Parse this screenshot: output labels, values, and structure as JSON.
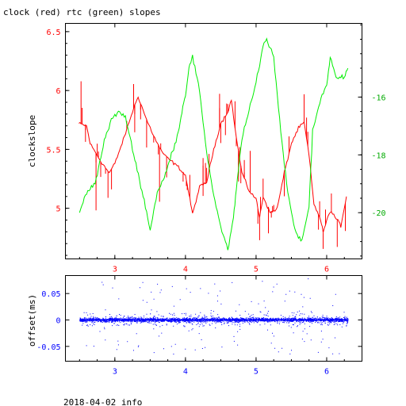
{
  "title": "clock (red) rtc (green) slopes",
  "footer": "2018-04-02 info",
  "colors": {
    "clock": "#ff0000",
    "rtc": "#00ee00",
    "offset": "#0000ff",
    "frame": "#000000"
  },
  "chart_data": [
    {
      "type": "line",
      "title": "clock (red) rtc (green) slopes",
      "xlabel": "",
      "ylabel": "clockslope",
      "xlim": [
        2.3,
        6.5
      ],
      "ylim": [
        4.57,
        6.57
      ],
      "ylim_right": [
        -21.6,
        -13.45
      ],
      "xticks": [
        "3",
        "4",
        "5",
        "6"
      ],
      "yticks_left": [
        "5",
        "5.5",
        "6",
        "6.5"
      ],
      "yticks_right": [
        "-20",
        "-18",
        "-16"
      ],
      "grid": false,
      "series": [
        {
          "name": "clock",
          "color": "#ff0000",
          "axis": "left",
          "x": [
            2.49,
            2.6,
            2.65,
            2.8,
            2.92,
            3.0,
            3.12,
            3.25,
            3.33,
            3.45,
            3.6,
            3.7,
            3.8,
            3.9,
            4.0,
            4.05,
            4.1,
            4.2,
            4.3,
            4.4,
            4.5,
            4.6,
            4.65,
            4.72,
            4.8,
            4.9,
            5.0,
            5.05,
            5.1,
            5.15,
            5.2,
            5.3,
            5.4,
            5.5,
            5.6,
            5.68,
            5.75,
            5.82,
            5.9,
            5.95,
            6.05,
            6.15,
            6.2,
            6.28
          ],
          "y": [
            5.72,
            5.7,
            5.55,
            5.4,
            5.3,
            5.38,
            5.58,
            5.82,
            5.95,
            5.75,
            5.55,
            5.45,
            5.4,
            5.35,
            5.28,
            5.12,
            4.95,
            5.18,
            5.22,
            5.5,
            5.72,
            5.82,
            5.92,
            5.6,
            5.3,
            5.15,
            5.08,
            4.92,
            5.1,
            5.03,
            4.96,
            5.0,
            5.3,
            5.55,
            5.68,
            5.73,
            5.45,
            5.03,
            4.93,
            4.8,
            4.98,
            4.9,
            4.85,
            5.1
          ]
        },
        {
          "name": "rtc",
          "color": "#00ee00",
          "axis": "right",
          "x": [
            2.5,
            2.6,
            2.72,
            2.85,
            2.95,
            3.05,
            3.15,
            3.25,
            3.4,
            3.5,
            3.6,
            3.7,
            3.8,
            3.9,
            3.95,
            4.0,
            4.05,
            4.1,
            4.2,
            4.3,
            4.4,
            4.5,
            4.6,
            4.68,
            4.72,
            4.8,
            4.9,
            5.0,
            5.1,
            5.15,
            5.25,
            5.35,
            5.45,
            5.55,
            5.65,
            5.75,
            5.8,
            5.92,
            6.0,
            6.05,
            6.15,
            6.25,
            6.3
          ],
          "y": [
            -20.0,
            -19.3,
            -19.0,
            -17.5,
            -16.8,
            -16.5,
            -16.7,
            -17.8,
            -19.4,
            -20.6,
            -19.3,
            -18.8,
            -18.0,
            -17.2,
            -16.5,
            -15.9,
            -15.0,
            -14.6,
            -15.8,
            -17.9,
            -19.4,
            -20.5,
            -21.3,
            -20.2,
            -19.2,
            -17.4,
            -16.5,
            -15.5,
            -14.2,
            -14.0,
            -14.6,
            -17.2,
            -19.3,
            -20.6,
            -21.0,
            -19.8,
            -17.2,
            -16.0,
            -15.6,
            -14.6,
            -15.4,
            -15.3,
            -15.0
          ]
        }
      ]
    },
    {
      "type": "scatter",
      "xlabel": "",
      "ylabel": "offset(ms)",
      "xlim": [
        2.3,
        6.5
      ],
      "ylim": [
        -0.078,
        0.084
      ],
      "xticks": [
        "3",
        "4",
        "5",
        "6"
      ],
      "yticks": [
        "-0.05",
        "0",
        "0.05"
      ],
      "grid": false,
      "series": [
        {
          "name": "offset",
          "color": "#0000ff",
          "x_range": [
            2.5,
            6.3
          ],
          "typical_band": [
            -0.006,
            0.006
          ],
          "outlier_extent": [
            -0.065,
            0.08
          ]
        }
      ]
    }
  ]
}
